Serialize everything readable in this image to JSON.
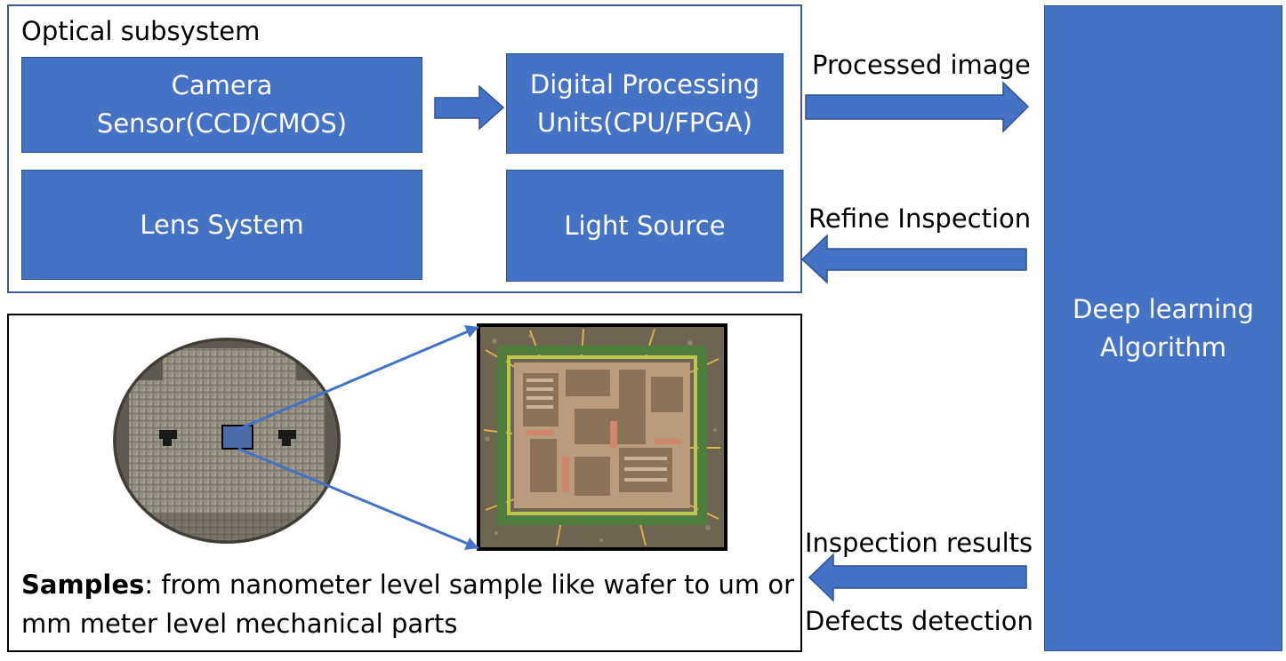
{
  "optical_subsystem": {
    "title": "Optical subsystem",
    "camera_label": "Camera\nSensor(CCD/CMOS)",
    "dpu_label": "Digital Processing\nUnits(CPU/FPGA)",
    "lens_label": "Lens System",
    "light_label": "Light Source"
  },
  "deep_learning": {
    "label": "Deep learning\nAlgorithm"
  },
  "flows": {
    "processed_image": "Processed image",
    "refine_inspection": "Refine Inspection",
    "inspection_results": "Inspection results",
    "defects_detection": "Defects detection"
  },
  "samples": {
    "caption_bold": "Samples",
    "caption_rest": ": from nanometer level sample like wafer to um or mm meter level mechanical parts"
  },
  "colors": {
    "box_fill": "#4472c4",
    "box_border": "#2f528f",
    "panel_border": "#3d5a93",
    "zoom_line": "#4472c4"
  }
}
